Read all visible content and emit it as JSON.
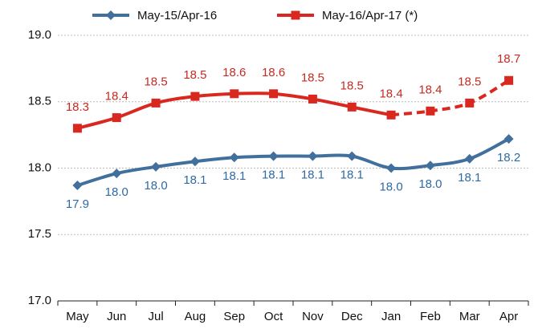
{
  "chart_data": {
    "type": "line",
    "categories": [
      "May",
      "Jun",
      "Jul",
      "Aug",
      "Sep",
      "Oct",
      "Nov",
      "Dec",
      "Jan",
      "Feb",
      "Mar",
      "Apr"
    ],
    "series": [
      {
        "name": "May-15/Apr-16",
        "color": "#41709c",
        "label_color": "#2f6aa3",
        "marker": "diamond",
        "label_position": "below",
        "values": [
          17.87,
          17.96,
          18.01,
          18.05,
          18.08,
          18.09,
          18.09,
          18.09,
          18.0,
          18.02,
          18.07,
          18.22
        ],
        "value_labels": [
          "17.9",
          "18.0",
          "18.0",
          "18.1",
          "18.1",
          "18.1",
          "18.1",
          "18.1",
          "18.0",
          "18.0",
          "18.1",
          "18.2"
        ]
      },
      {
        "name": "May-16/Apr-17 (*)",
        "color": "#d8281f",
        "label_color": "#c42b22",
        "marker": "square",
        "label_position": "above",
        "dash_from": 8,
        "values": [
          18.3,
          18.38,
          18.49,
          18.54,
          18.56,
          18.56,
          18.52,
          18.46,
          18.4,
          18.43,
          18.49,
          18.66
        ],
        "value_labels": [
          "18.3",
          "18.4",
          "18.5",
          "18.5",
          "18.6",
          "18.6",
          "18.5",
          "18.5",
          "18.4",
          "18.4",
          "18.5",
          "18.7"
        ]
      }
    ],
    "ylim": [
      17.0,
      19.0
    ],
    "yticks": [
      {
        "value": 17.0,
        "label": "17.0"
      },
      {
        "value": 17.5,
        "label": "17.5"
      },
      {
        "value": 18.0,
        "label": "18.0"
      },
      {
        "value": 18.5,
        "label": "18.5"
      },
      {
        "value": 19.0,
        "label": "19.0"
      }
    ],
    "grid": true,
    "legend": "top"
  }
}
